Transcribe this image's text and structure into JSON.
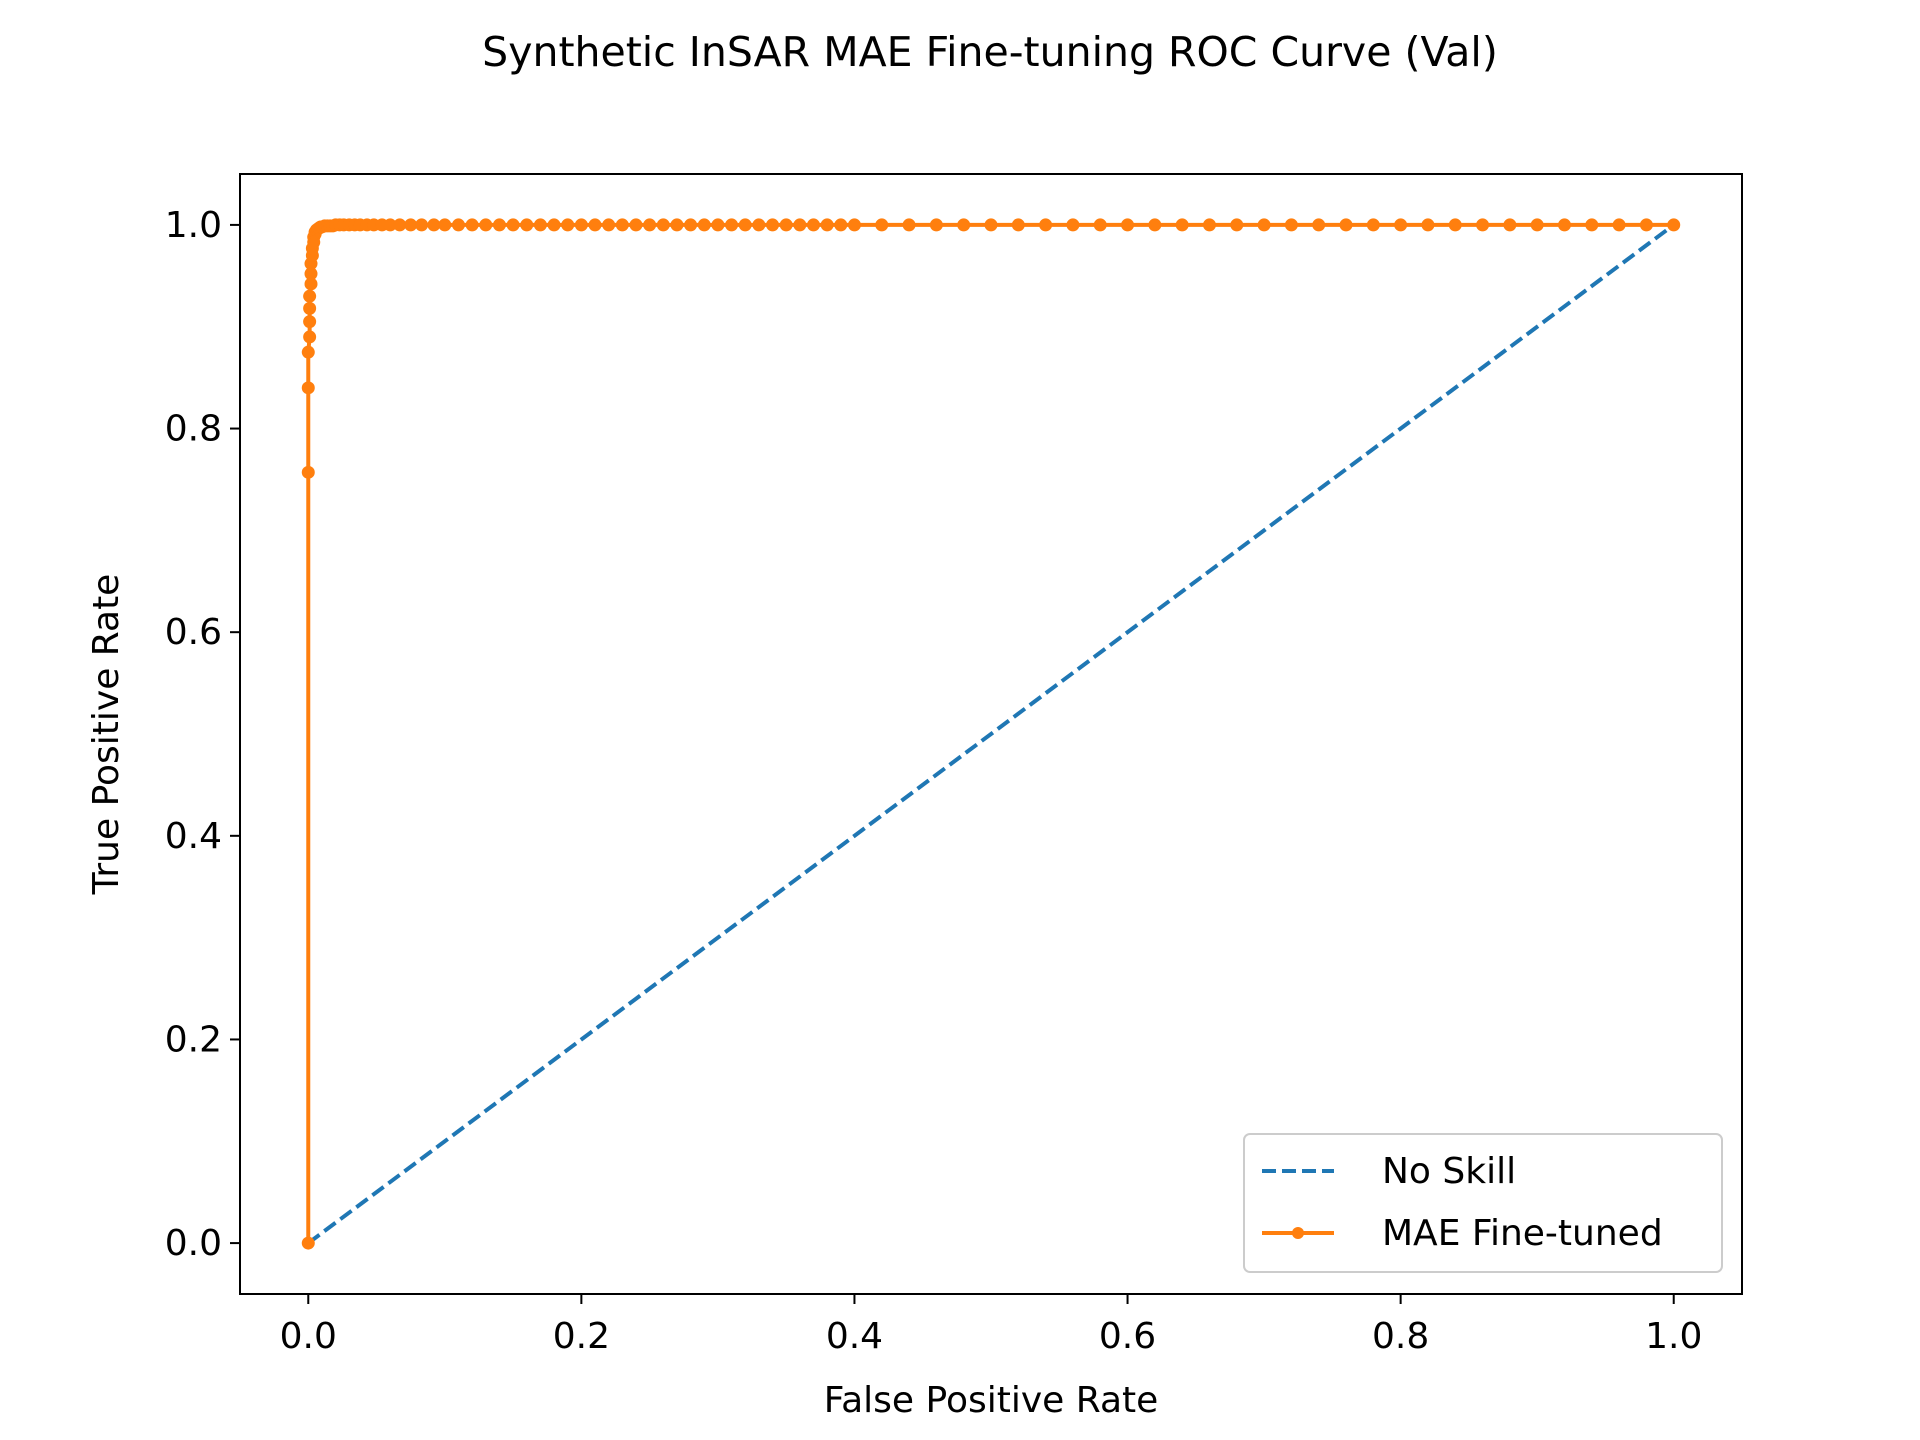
{
  "chart_data": {
    "type": "line",
    "title": "Synthetic InSAR MAE Fine-tuning ROC Curve (Val)",
    "xlabel": "False Positive Rate",
    "ylabel": "True Positive Rate",
    "xlim": [
      -0.05,
      1.05
    ],
    "ylim": [
      -0.05,
      1.05
    ],
    "xticks": [
      0.0,
      0.2,
      0.4,
      0.6,
      0.8,
      1.0
    ],
    "yticks": [
      0.0,
      0.2,
      0.4,
      0.6,
      0.8,
      1.0
    ],
    "xtick_labels": [
      "0.0",
      "0.2",
      "0.4",
      "0.6",
      "0.8",
      "1.0"
    ],
    "ytick_labels": [
      "0.0",
      "0.2",
      "0.4",
      "0.6",
      "0.8",
      "1.0"
    ],
    "grid": false,
    "legend_position": "lower-right",
    "series": [
      {
        "name": "No Skill",
        "style": "dashed",
        "color": "#1f77b4",
        "markers": false,
        "x": [
          0.0,
          1.0
        ],
        "y": [
          0.0,
          1.0
        ]
      },
      {
        "name": "MAE Fine-tuned",
        "style": "solid",
        "color": "#ff7f0e",
        "markers": true,
        "x": [
          0.0,
          0.0,
          0.0,
          0.0,
          0.001,
          0.001,
          0.001,
          0.001,
          0.002,
          0.002,
          0.002,
          0.003,
          0.003,
          0.004,
          0.004,
          0.005,
          0.005,
          0.006,
          0.007,
          0.008,
          0.009,
          0.01,
          0.012,
          0.014,
          0.016,
          0.018,
          0.02,
          0.023,
          0.026,
          0.03,
          0.034,
          0.038,
          0.043,
          0.048,
          0.054,
          0.06,
          0.067,
          0.075,
          0.083,
          0.092,
          0.1,
          0.11,
          0.12,
          0.13,
          0.14,
          0.15,
          0.16,
          0.17,
          0.18,
          0.19,
          0.2,
          0.21,
          0.22,
          0.23,
          0.24,
          0.25,
          0.26,
          0.27,
          0.28,
          0.29,
          0.3,
          0.31,
          0.32,
          0.33,
          0.34,
          0.35,
          0.36,
          0.37,
          0.38,
          0.39,
          0.4,
          0.42,
          0.44,
          0.46,
          0.48,
          0.5,
          0.52,
          0.54,
          0.56,
          0.58,
          0.6,
          0.62,
          0.64,
          0.66,
          0.68,
          0.7,
          0.72,
          0.74,
          0.76,
          0.78,
          0.8,
          0.82,
          0.84,
          0.86,
          0.88,
          0.9,
          0.92,
          0.94,
          0.96,
          0.98,
          1.0
        ],
        "y": [
          0.0,
          0.757,
          0.84,
          0.875,
          0.89,
          0.905,
          0.918,
          0.93,
          0.942,
          0.952,
          0.962,
          0.97,
          0.977,
          0.983,
          0.988,
          0.991,
          0.993,
          0.995,
          0.996,
          0.997,
          0.998,
          0.998,
          0.999,
          0.999,
          0.999,
          0.999,
          1.0,
          1.0,
          1.0,
          1.0,
          1.0,
          1.0,
          1.0,
          1.0,
          1.0,
          1.0,
          1.0,
          1.0,
          1.0,
          1.0,
          1.0,
          1.0,
          1.0,
          1.0,
          1.0,
          1.0,
          1.0,
          1.0,
          1.0,
          1.0,
          1.0,
          1.0,
          1.0,
          1.0,
          1.0,
          1.0,
          1.0,
          1.0,
          1.0,
          1.0,
          1.0,
          1.0,
          1.0,
          1.0,
          1.0,
          1.0,
          1.0,
          1.0,
          1.0,
          1.0,
          1.0,
          1.0,
          1.0,
          1.0,
          1.0,
          1.0,
          1.0,
          1.0,
          1.0,
          1.0,
          1.0,
          1.0,
          1.0,
          1.0,
          1.0,
          1.0,
          1.0,
          1.0,
          1.0,
          1.0,
          1.0,
          1.0,
          1.0,
          1.0,
          1.0,
          1.0,
          1.0,
          1.0,
          1.0,
          1.0,
          1.0
        ]
      }
    ]
  }
}
